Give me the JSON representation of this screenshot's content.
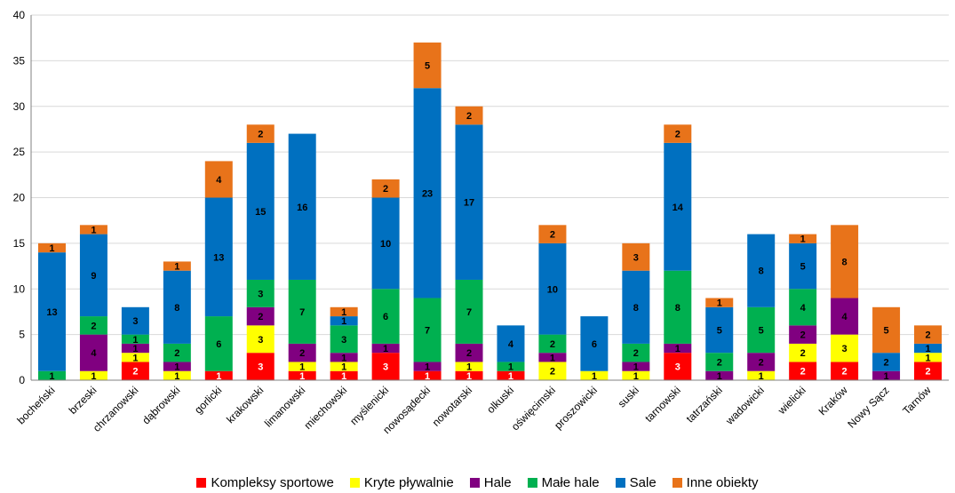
{
  "chart_data": {
    "type": "bar",
    "stacked": true,
    "title": "",
    "xlabel": "",
    "ylabel": "",
    "ylim": [
      0,
      40
    ],
    "yticks": [
      0,
      5,
      10,
      15,
      20,
      25,
      30,
      35,
      40
    ],
    "grid": true,
    "legend_position": "bottom",
    "categories": [
      "bocheński",
      "brzeski",
      "chrzanowski",
      "dąbrowski",
      "gorlicki",
      "krakowski",
      "limanowski",
      "miechowski",
      "myślenicki",
      "nowosądecki",
      "nowotarski",
      "olkuski",
      "oświęcimski",
      "proszowicki",
      "suski",
      "tarnowski",
      "tatrzański",
      "wadowicki",
      "wielicki",
      "Kraków",
      "Nowy Sącz",
      "Tarnów"
    ],
    "series": [
      {
        "name": "Kompleksy sportowe",
        "color": "#FF0000",
        "label_color": "#FFFFFF",
        "values": [
          0,
          0,
          2,
          0,
          1,
          3,
          1,
          1,
          3,
          1,
          1,
          1,
          0,
          0,
          0,
          3,
          0,
          0,
          2,
          2,
          0,
          2
        ]
      },
      {
        "name": "Kryte pływalnie",
        "color": "#FFFF00",
        "label_color": "#000000",
        "values": [
          0,
          1,
          1,
          1,
          0,
          3,
          1,
          1,
          0,
          0,
          1,
          0,
          2,
          1,
          1,
          0,
          0,
          1,
          2,
          3,
          0,
          1
        ]
      },
      {
        "name": "Hale",
        "color": "#800080",
        "label_color": "#000000",
        "values": [
          0,
          4,
          1,
          1,
          0,
          2,
          2,
          1,
          1,
          1,
          2,
          0,
          1,
          0,
          1,
          1,
          1,
          2,
          2,
          4,
          1,
          0
        ]
      },
      {
        "name": "Małe hale",
        "color": "#00B050",
        "label_color": "#000000",
        "values": [
          1,
          2,
          1,
          2,
          6,
          3,
          7,
          3,
          6,
          7,
          7,
          1,
          2,
          0,
          2,
          8,
          2,
          5,
          4,
          0,
          0,
          0
        ]
      },
      {
        "name": "Sale",
        "color": "#0070C0",
        "label_color": "#000000",
        "values": [
          13,
          9,
          3,
          8,
          13,
          15,
          16,
          1,
          10,
          23,
          17,
          4,
          10,
          6,
          8,
          14,
          5,
          8,
          5,
          0,
          2,
          1
        ]
      },
      {
        "name": "Inne obiekty",
        "color": "#E8731A",
        "label_color": "#000000",
        "values": [
          1,
          1,
          0,
          1,
          4,
          2,
          0,
          1,
          2,
          5,
          2,
          0,
          2,
          0,
          3,
          2,
          1,
          0,
          1,
          8,
          5,
          2
        ]
      }
    ]
  }
}
